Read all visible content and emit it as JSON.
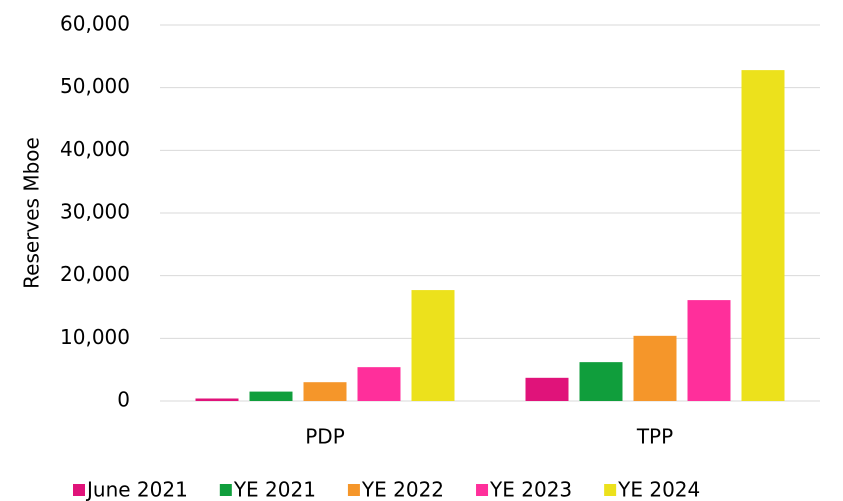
{
  "chart_data": {
    "type": "bar",
    "y_label": "Reserves Mboe",
    "categories": [
      "PDP",
      "TPP"
    ],
    "series": [
      {
        "name": "June 2021",
        "color": "#e0137a",
        "values": [
          400,
          3700
        ]
      },
      {
        "name": "YE 2021",
        "color": "#109e3c",
        "values": [
          1500,
          6200
        ]
      },
      {
        "name": "YE 2022",
        "color": "#f5962a",
        "values": [
          3000,
          10400
        ]
      },
      {
        "name": "YE 2023",
        "color": "#ff2f9b",
        "values": [
          5400,
          16100
        ]
      },
      {
        "name": "YE 2024",
        "color": "#ece11c",
        "values": [
          17700,
          52800
        ]
      }
    ],
    "ylim": [
      0,
      60000
    ],
    "yticks": [
      0,
      {
        "value": 10000,
        "label": "10,000"
      },
      {
        "value": 20000,
        "label": "20,000"
      },
      {
        "value": 30000,
        "label": "30,000"
      },
      {
        "value": 40000,
        "label": "40,000"
      },
      {
        "value": 50000,
        "label": "50,000"
      },
      {
        "value": 60000,
        "label": "60,000"
      }
    ],
    "grid": true,
    "legend": "bottom"
  }
}
